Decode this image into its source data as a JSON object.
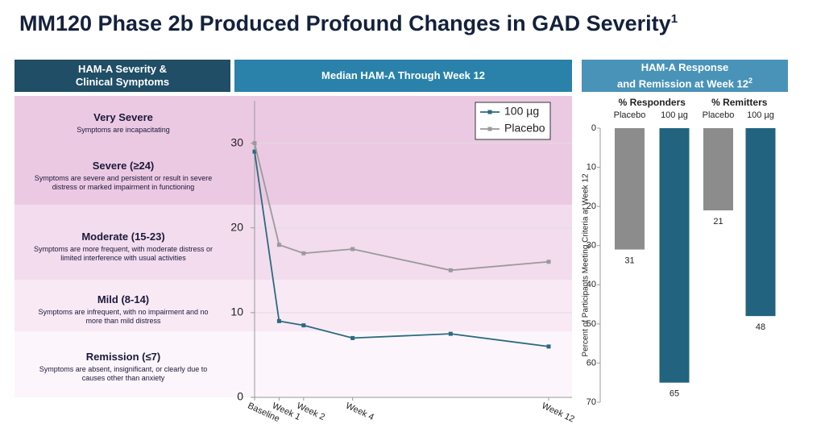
{
  "title": "MM120 Phase 2b Produced Profound Changes in GAD Severity",
  "title_footnote": "1",
  "panels": {
    "severity": {
      "header": [
        "HAM-A Severity &",
        "Clinical Symptoms"
      ],
      "levels": [
        {
          "name": "Very Severe",
          "description": "Symptoms are incapacitating"
        },
        {
          "name": "Severe (≥24)",
          "description": "Symptoms are severe and persistent or result in severe distress or marked impairment in functioning"
        },
        {
          "name": "Moderate (15-23)",
          "description": "Symptoms are more frequent, with moderate distress or limited interference with usual activities"
        },
        {
          "name": "Mild (8-14)",
          "description": "Symptoms are infrequent, with no impairment and no more than mild distress"
        },
        {
          "name": "Remission (≤7)",
          "description": "Symptoms are absent, insignificant, or clearly due to causes other than anxiety"
        }
      ]
    },
    "median": {
      "header": "Median HAM-A Through Week 12"
    },
    "response": {
      "header": [
        "HAM-A Response",
        "and Remission at Week 12"
      ],
      "header_footnote": "2"
    }
  },
  "chart_data": [
    {
      "type": "line",
      "x": [
        0,
        1,
        2,
        4,
        8,
        12
      ],
      "xlim": [
        0,
        12
      ],
      "xticks": [
        {
          "value": 0,
          "label": "Baseline"
        },
        {
          "value": 1,
          "label": "Week 1"
        },
        {
          "value": 2,
          "label": "Week 2"
        },
        {
          "value": 4,
          "label": "Week 4"
        },
        {
          "value": 12,
          "label": "Week 12"
        }
      ],
      "ylim": [
        0,
        35
      ],
      "yticks": [
        0,
        10,
        20,
        30
      ],
      "grid": true,
      "legend": "upper right",
      "series": [
        {
          "name": "100 µg",
          "color": "#2a6b80",
          "values": [
            29,
            9,
            8.5,
            7,
            7.5,
            6
          ]
        },
        {
          "name": "Placebo",
          "color": "#9a9a9a",
          "values": [
            30,
            18,
            17,
            17.5,
            15,
            16
          ]
        }
      ]
    },
    {
      "type": "bar",
      "groups": [
        "% Responders",
        "% Remitters"
      ],
      "categories": [
        "Placebo",
        "100 µg",
        "Placebo",
        "100 µg"
      ],
      "values": [
        31,
        65,
        21,
        48
      ],
      "colors": [
        "#8c8c8c",
        "#22647f",
        "#8c8c8c",
        "#22647f"
      ],
      "ylabel": "Percent of Participants Meeting Criteria at Week 12",
      "ylim": [
        0,
        70
      ],
      "y_inverted": true,
      "yticks": [
        0,
        10,
        20,
        30,
        40,
        50,
        60,
        70
      ]
    }
  ]
}
